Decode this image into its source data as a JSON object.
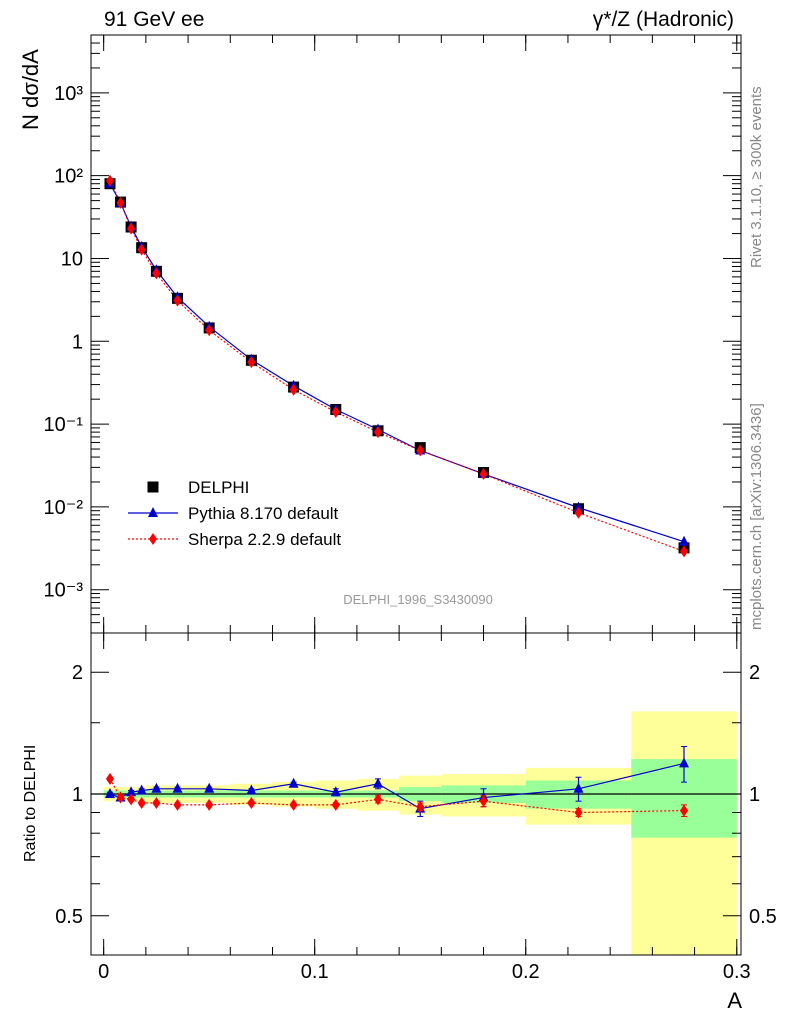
{
  "header": {
    "left": "91 GeV ee",
    "right": "γ*/Z (Hadronic)"
  },
  "side": {
    "rivet": "Rivet 3.1.10, ≥ 300k events",
    "mcplots": "mcplots.cern.ch [arXiv:1306.3436]"
  },
  "watermark": "DELPHI_1996_S3430090",
  "chart_data": {
    "type": "scatter",
    "xlabel": "A",
    "x": [
      0.003,
      0.008,
      0.013,
      0.018,
      0.025,
      0.035,
      0.05,
      0.07,
      0.09,
      0.11,
      0.13,
      0.15,
      0.18,
      0.225,
      0.275
    ],
    "main": {
      "ylabel": "N dσ/dA",
      "yscale": "log",
      "ylim": [
        0.0003,
        5000
      ],
      "yticks": [
        {
          "value": 0.001,
          "label": "10⁻³"
        },
        {
          "value": 0.01,
          "label": "10⁻²"
        },
        {
          "value": 0.1,
          "label": "10⁻¹"
        },
        {
          "value": 1,
          "label": "1"
        },
        {
          "value": 10,
          "label": "10"
        },
        {
          "value": 100,
          "label": "10²"
        },
        {
          "value": 1000,
          "label": "10³"
        }
      ],
      "series": [
        {
          "name": "DELPHI",
          "color": "#000000",
          "marker": "square",
          "values": [
            80,
            48,
            24,
            13.5,
            7.0,
            3.3,
            1.45,
            0.59,
            0.28,
            0.15,
            0.083,
            0.052,
            0.026,
            0.0095,
            0.0032
          ]
        },
        {
          "name": "Pythia 8.170 default",
          "color": "#0000cc",
          "marker": "triangle",
          "line": "solid",
          "values": [
            80,
            47,
            24.2,
            13.8,
            7.2,
            3.4,
            1.5,
            0.6,
            0.29,
            0.15,
            0.086,
            0.048,
            0.025,
            0.0098,
            0.0038
          ]
        },
        {
          "name": "Sherpa 2.2.9 default",
          "color": "#ff0000",
          "marker": "diamond",
          "line": "dotted",
          "values": [
            87,
            47,
            23,
            12.8,
            6.6,
            3.1,
            1.36,
            0.56,
            0.26,
            0.14,
            0.08,
            0.048,
            0.025,
            0.0085,
            0.0029
          ]
        }
      ]
    },
    "ratio": {
      "ylabel": "Ratio to DELPHI",
      "yscale": "log",
      "ylim": [
        0.4,
        2.5
      ],
      "yticks": [
        {
          "value": 0.5,
          "label": "0.5"
        },
        {
          "value": 1,
          "label": "1"
        },
        {
          "value": 2,
          "label": "2"
        }
      ],
      "bands": {
        "bin_edges": [
          0.0,
          0.005,
          0.01,
          0.015,
          0.02,
          0.03,
          0.04,
          0.06,
          0.08,
          0.1,
          0.12,
          0.14,
          0.16,
          0.2,
          0.25,
          0.3
        ],
        "stat": [
          0.02,
          0.02,
          0.02,
          0.02,
          0.02,
          0.02,
          0.02,
          0.02,
          0.02,
          0.02,
          0.02,
          0.04,
          0.05,
          0.08,
          0.22
        ],
        "total": [
          0.04,
          0.04,
          0.04,
          0.04,
          0.05,
          0.05,
          0.05,
          0.06,
          0.07,
          0.08,
          0.09,
          0.11,
          0.12,
          0.16,
          0.6
        ]
      },
      "series": [
        {
          "name": "Pythia 8.170 default",
          "color": "#0000cc",
          "values": [
            1.0,
            0.98,
            1.01,
            1.02,
            1.03,
            1.03,
            1.03,
            1.02,
            1.06,
            1.01,
            1.06,
            0.92,
            0.98,
            1.03,
            1.19
          ],
          "errors": [
            0.01,
            0.01,
            0.01,
            0.01,
            0.01,
            0.01,
            0.01,
            0.01,
            0.01,
            0.02,
            0.03,
            0.04,
            0.05,
            0.07,
            0.12
          ]
        },
        {
          "name": "Sherpa 2.2.9 default",
          "color": "#ff0000",
          "values": [
            1.09,
            0.98,
            0.97,
            0.95,
            0.95,
            0.94,
            0.94,
            0.95,
            0.94,
            0.94,
            0.97,
            0.93,
            0.96,
            0.9,
            0.91
          ],
          "errors": [
            0.01,
            0.01,
            0.01,
            0.01,
            0.01,
            0.01,
            0.01,
            0.01,
            0.01,
            0.01,
            0.02,
            0.02,
            0.03,
            0.02,
            0.03
          ]
        }
      ],
      "band_colors": {
        "stat": "#99ff99",
        "total": "#ffff99"
      }
    },
    "xlim": [
      -0.006,
      0.302
    ],
    "xticks": [
      {
        "value": 0,
        "label": "0"
      },
      {
        "value": 0.1,
        "label": "0.1"
      },
      {
        "value": 0.2,
        "label": "0.2"
      },
      {
        "value": 0.3,
        "label": "0.3"
      }
    ]
  }
}
